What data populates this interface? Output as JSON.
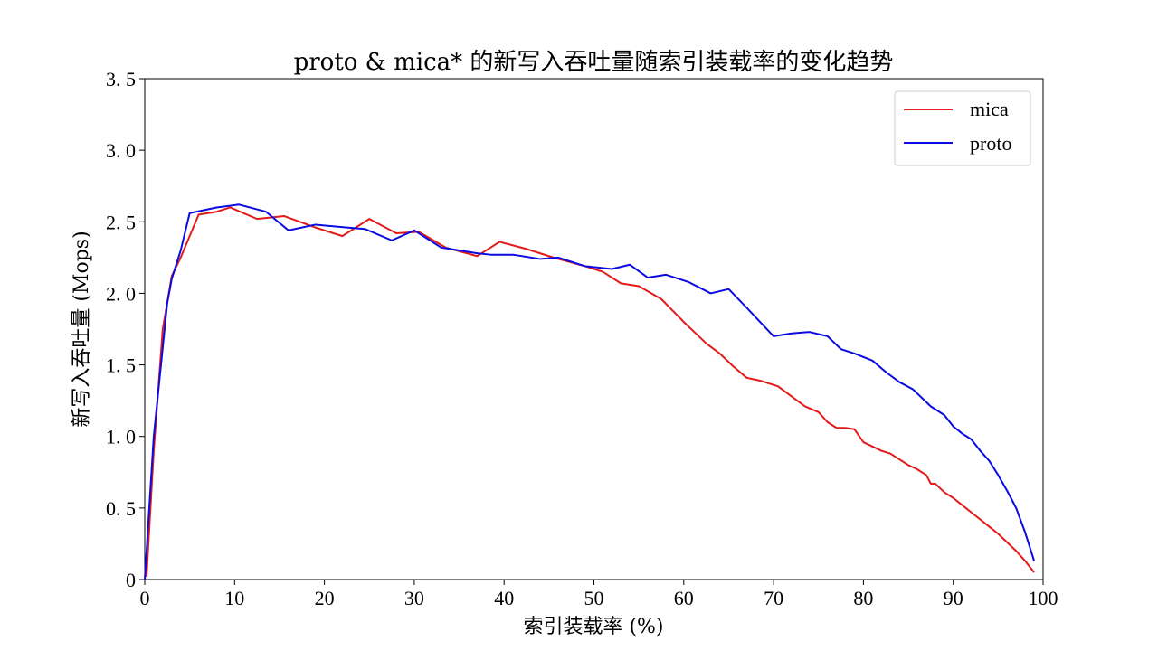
{
  "chart_data": {
    "type": "line",
    "title": "proto & mica* 的新写入吞吐量随索引装载率的变化趋势",
    "xlabel": "索引装载率 (%)",
    "ylabel": "新写入吞吐量 (Mops)",
    "xlim": [
      0,
      100
    ],
    "ylim": [
      0,
      3.5
    ],
    "xticks": [
      0,
      10,
      20,
      30,
      40,
      50,
      60,
      70,
      80,
      90,
      100
    ],
    "xtick_labels": [
      "0",
      "10",
      "20",
      "30",
      "40",
      "50",
      "60",
      "70",
      "80",
      "90",
      "100"
    ],
    "yticks": [
      0,
      0.5,
      1.0,
      1.5,
      2.0,
      2.5,
      3.0,
      3.5
    ],
    "ytick_labels": [
      "0",
      "0. 5",
      "1. 0",
      "1. 5",
      "2. 0",
      "2. 5",
      "3. 0",
      "3. 5"
    ],
    "grid": false,
    "legend_position": "top-right",
    "series": [
      {
        "name": "mica",
        "color": "#e31a1a",
        "x": [
          0.2,
          1.0,
          2.0,
          3.0,
          4.0,
          5.0,
          6.0,
          8.0,
          9.5,
          12.5,
          15.5,
          19.0,
          22.0,
          25.0,
          28.0,
          30.5,
          33.5,
          37.0,
          39.5,
          42.5,
          45.5,
          49.0,
          51.0,
          53.0,
          55.0,
          57.5,
          60.0,
          62.5,
          64.0,
          65.5,
          67.0,
          68.5,
          70.5,
          72.0,
          73.5,
          75.0,
          76.0,
          77.0,
          78.0,
          79.0,
          80.0,
          81.0,
          82.0,
          83.0,
          84.0,
          85.0,
          86.0,
          87.0,
          87.5,
          88.0,
          89.0,
          90.0,
          91.0,
          92.0,
          93.0,
          94.0,
          95.0,
          96.0,
          97.0,
          98.0,
          99.0
        ],
        "values": [
          0.02,
          0.9,
          1.75,
          2.12,
          2.25,
          2.4,
          2.55,
          2.57,
          2.6,
          2.52,
          2.54,
          2.46,
          2.4,
          2.52,
          2.42,
          2.43,
          2.32,
          2.26,
          2.36,
          2.31,
          2.25,
          2.19,
          2.15,
          2.07,
          2.05,
          1.96,
          1.8,
          1.65,
          1.58,
          1.49,
          1.41,
          1.39,
          1.35,
          1.28,
          1.21,
          1.17,
          1.1,
          1.06,
          1.06,
          1.05,
          0.96,
          0.93,
          0.9,
          0.88,
          0.84,
          0.8,
          0.77,
          0.73,
          0.67,
          0.67,
          0.61,
          0.57,
          0.52,
          0.47,
          0.42,
          0.37,
          0.32,
          0.26,
          0.2,
          0.13,
          0.05
        ]
      },
      {
        "name": "proto",
        "color": "#0a0ae3",
        "x": [
          0.0,
          1.0,
          2.5,
          3.0,
          4.0,
          5.0,
          8.0,
          10.5,
          13.5,
          16.0,
          19.0,
          22.5,
          24.5,
          27.5,
          30.0,
          33.0,
          37.0,
          38.5,
          41.0,
          44.0,
          46.0,
          49.0,
          52.0,
          54.0,
          56.0,
          58.0,
          60.5,
          63.0,
          65.0,
          67.0,
          70.0,
          72.0,
          74.0,
          76.0,
          77.5,
          79.0,
          81.0,
          82.5,
          84.0,
          85.5,
          86.5,
          87.5,
          89.0,
          90.0,
          91.0,
          92.0,
          93.0,
          94.0,
          95.0,
          96.0,
          97.0,
          98.0,
          99.0
        ],
        "values": [
          0.0,
          1.0,
          1.93,
          2.1,
          2.3,
          2.56,
          2.6,
          2.62,
          2.57,
          2.44,
          2.48,
          2.46,
          2.45,
          2.37,
          2.44,
          2.32,
          2.28,
          2.27,
          2.27,
          2.24,
          2.25,
          2.19,
          2.17,
          2.2,
          2.11,
          2.13,
          2.08,
          2.0,
          2.03,
          1.9,
          1.7,
          1.72,
          1.73,
          1.7,
          1.61,
          1.58,
          1.53,
          1.45,
          1.38,
          1.33,
          1.27,
          1.21,
          1.15,
          1.07,
          1.02,
          0.98,
          0.9,
          0.83,
          0.73,
          0.62,
          0.5,
          0.33,
          0.13
        ]
      }
    ]
  }
}
